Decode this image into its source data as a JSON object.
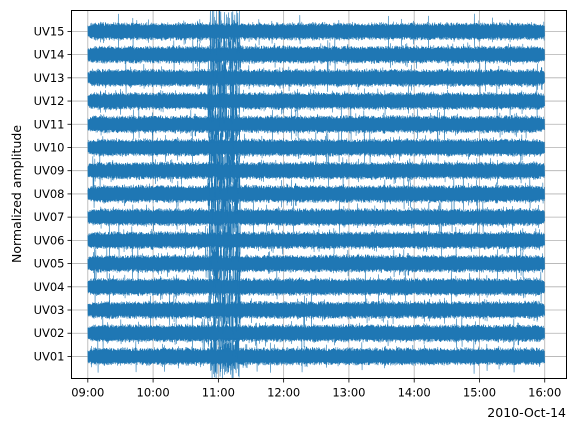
{
  "chart_data": {
    "type": "line",
    "title": "",
    "xlabel": "",
    "ylabel": "Normalized amplitude",
    "date_label": "2010-Oct-14",
    "x_ticks": [
      "09:00",
      "10:00",
      "11:00",
      "12:00",
      "13:00",
      "14:00",
      "15:00",
      "16:00"
    ],
    "xlim": [
      "08:45",
      "16:20"
    ],
    "time_range": [
      "09:00",
      "16:00"
    ],
    "grid": true,
    "color": "#1f77b4",
    "series": [
      {
        "name": "UV01",
        "offset": 1
      },
      {
        "name": "UV02",
        "offset": 2
      },
      {
        "name": "UV03",
        "offset": 3
      },
      {
        "name": "UV04",
        "offset": 4
      },
      {
        "name": "UV05",
        "offset": 5
      },
      {
        "name": "UV06",
        "offset": 6
      },
      {
        "name": "UV07",
        "offset": 7
      },
      {
        "name": "UV08",
        "offset": 8
      },
      {
        "name": "UV09",
        "offset": 9
      },
      {
        "name": "UV10",
        "offset": 10
      },
      {
        "name": "UV11",
        "offset": 11
      },
      {
        "name": "UV12",
        "offset": 12
      },
      {
        "name": "UV13",
        "offset": 13
      },
      {
        "name": "UV14",
        "offset": 14
      },
      {
        "name": "UV15",
        "offset": 15
      }
    ],
    "burst_window": [
      "10:50",
      "11:20"
    ]
  }
}
